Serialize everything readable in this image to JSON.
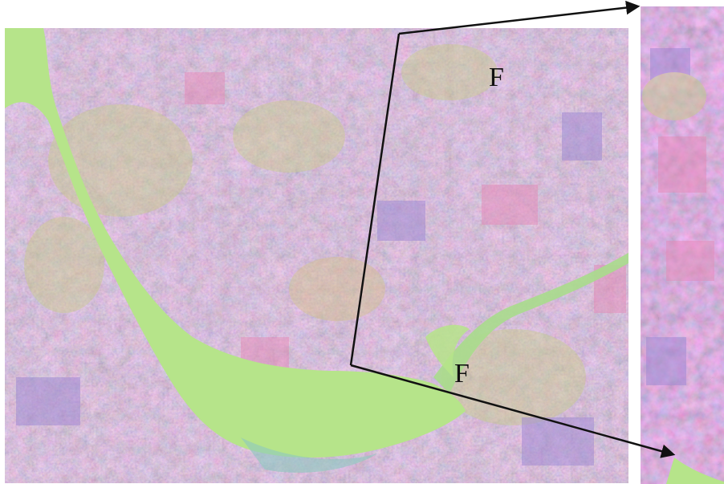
{
  "figure": {
    "labels": {
      "upper_region": "F",
      "lower_region": "F"
    },
    "colors": {
      "background": "#ffffff",
      "water": "#b6e48a",
      "land_mauve": "#c48ec8",
      "land_pink": "#e48ab8",
      "land_purple": "#9c86d2",
      "land_yellow_green": "#c8cc8a",
      "arrow": "#111111"
    },
    "panels": [
      {
        "name": "main-image",
        "kind": "false-color satellite image"
      },
      {
        "name": "zoom-inset",
        "kind": "enlarged detail, partially visible"
      }
    ]
  }
}
